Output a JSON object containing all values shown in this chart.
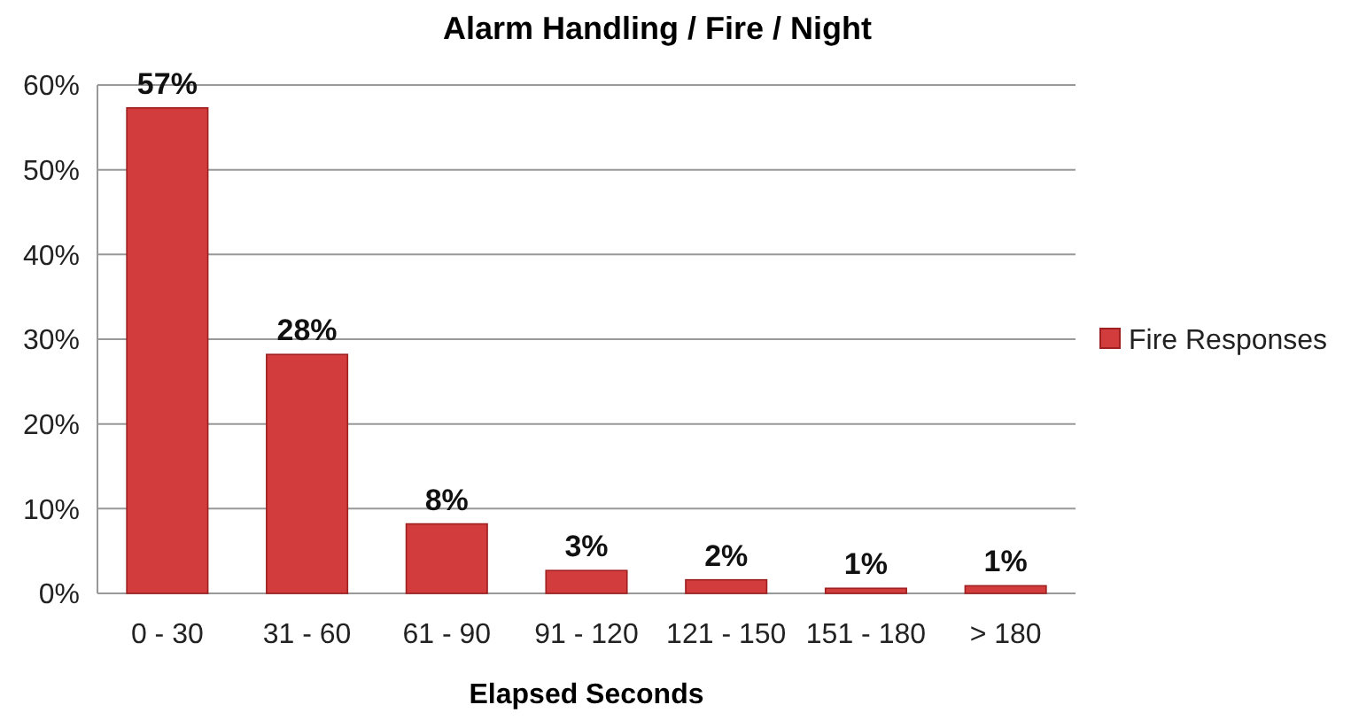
{
  "chart_data": {
    "type": "bar",
    "title": "Alarm Handling / Fire / Night",
    "xlabel": "Elapsed Seconds",
    "categories": [
      "0 - 30",
      "31 - 60",
      "61 - 90",
      "91 - 120",
      "121 - 150",
      "151 - 180",
      "> 180"
    ],
    "series": [
      {
        "name": "Fire Responses",
        "color": "#d23c3c",
        "values": [
          57.3,
          28.2,
          8.2,
          2.7,
          1.6,
          0.6,
          0.9
        ],
        "value_labels": [
          "57%",
          "28%",
          "8%",
          "3%",
          "2%",
          "1%",
          "1%"
        ]
      }
    ],
    "ylim": [
      0,
      60
    ],
    "yticks": [
      {
        "value": 0,
        "label": "0%"
      },
      {
        "value": 10,
        "label": "10%"
      },
      {
        "value": 20,
        "label": "20%"
      },
      {
        "value": 30,
        "label": "30%"
      },
      {
        "value": 40,
        "label": "40%"
      },
      {
        "value": 50,
        "label": "50%"
      },
      {
        "value": 60,
        "label": "60%"
      }
    ],
    "grid": "y",
    "legend": "right"
  }
}
